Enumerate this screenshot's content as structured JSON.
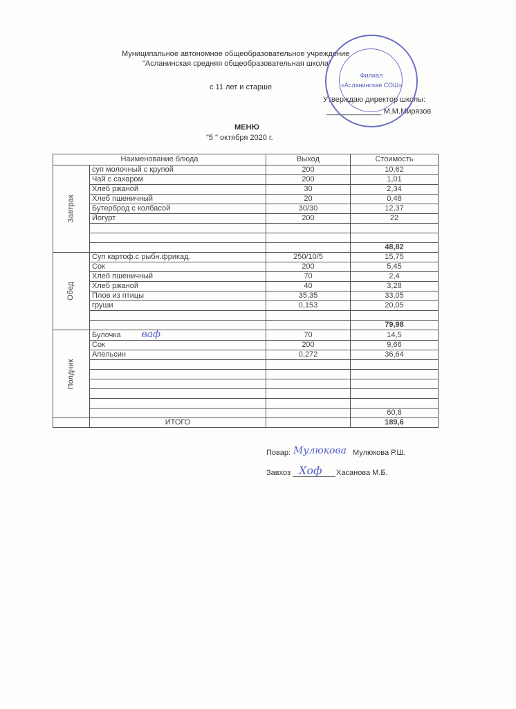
{
  "header": {
    "org_line1": "Муниципальное автономное общеобразовательное учреждение",
    "org_line2": "\"Асланинская средняя общеобразовательная школа\"",
    "age_group": "с 11 лет и старше",
    "approve": "Утверждаю директор школы:",
    "director": "_____________ М.М.Мирязов",
    "title": "МЕНЮ",
    "date": "\"5 \"  октября   2020 г."
  },
  "stamp": {
    "line1": "Филиал",
    "line2": "«Асланинская СОШ»"
  },
  "table": {
    "headers": [
      "Наименование блюда",
      "Выход",
      "Стоимость"
    ],
    "sections": [
      {
        "meal": "Завтрак",
        "rows": [
          [
            "суп молочный с крупой",
            "200",
            "10,62"
          ],
          [
            "Чай с сахаром",
            "200",
            "1,01"
          ],
          [
            "Хлеб ржаной",
            "30",
            "2,34"
          ],
          [
            "Хлеб пшеничный",
            "20",
            "0,48"
          ],
          [
            "Бутерброд с колбасой",
            "30/30",
            "12,37"
          ],
          [
            "Йогурт",
            "200",
            "22"
          ],
          [
            "",
            "",
            ""
          ],
          [
            "",
            "",
            ""
          ]
        ],
        "total": "48,82"
      },
      {
        "meal": "Обед",
        "rows": [
          [
            "Суп картоф.с рыбн.фрикад.",
            "250/10/5",
            "15,75"
          ],
          [
            "Сок",
            "200",
            "5,45"
          ],
          [
            "Хлеб пшеничный",
            "70",
            "2,4"
          ],
          [
            "Хлеб ржаной",
            "40",
            "3,28"
          ],
          [
            "Плов из птицы",
            "35,35",
            "33,05"
          ],
          [
            "груши",
            "0,153",
            "20,05"
          ],
          [
            "",
            "",
            ""
          ]
        ],
        "total": "79,98"
      },
      {
        "meal": "Полдник",
        "rows": [
          [
            "Булочка",
            "70",
            "14,5"
          ],
          [
            "Сок",
            "200",
            "9,66"
          ],
          [
            "Апельсин",
            "0,272",
            "36,64"
          ],
          [
            "",
            "",
            ""
          ],
          [
            "",
            "",
            ""
          ],
          [
            "",
            "",
            ""
          ],
          [
            "",
            "",
            ""
          ],
          [
            "",
            "",
            ""
          ]
        ],
        "total": "60,8"
      }
    ],
    "grand_total_label": "ИТОГО",
    "grand_total": "189,6",
    "handwritten_note": "ваф"
  },
  "signatures": {
    "cook_label": "Повар:",
    "cook_name": "Мулюкова Р.Ш.",
    "cook_sign": "Мулюкова",
    "supply_label": "Завхоз",
    "supply_name": "Хасанова М.Б.",
    "supply_sign": "Хоф"
  }
}
